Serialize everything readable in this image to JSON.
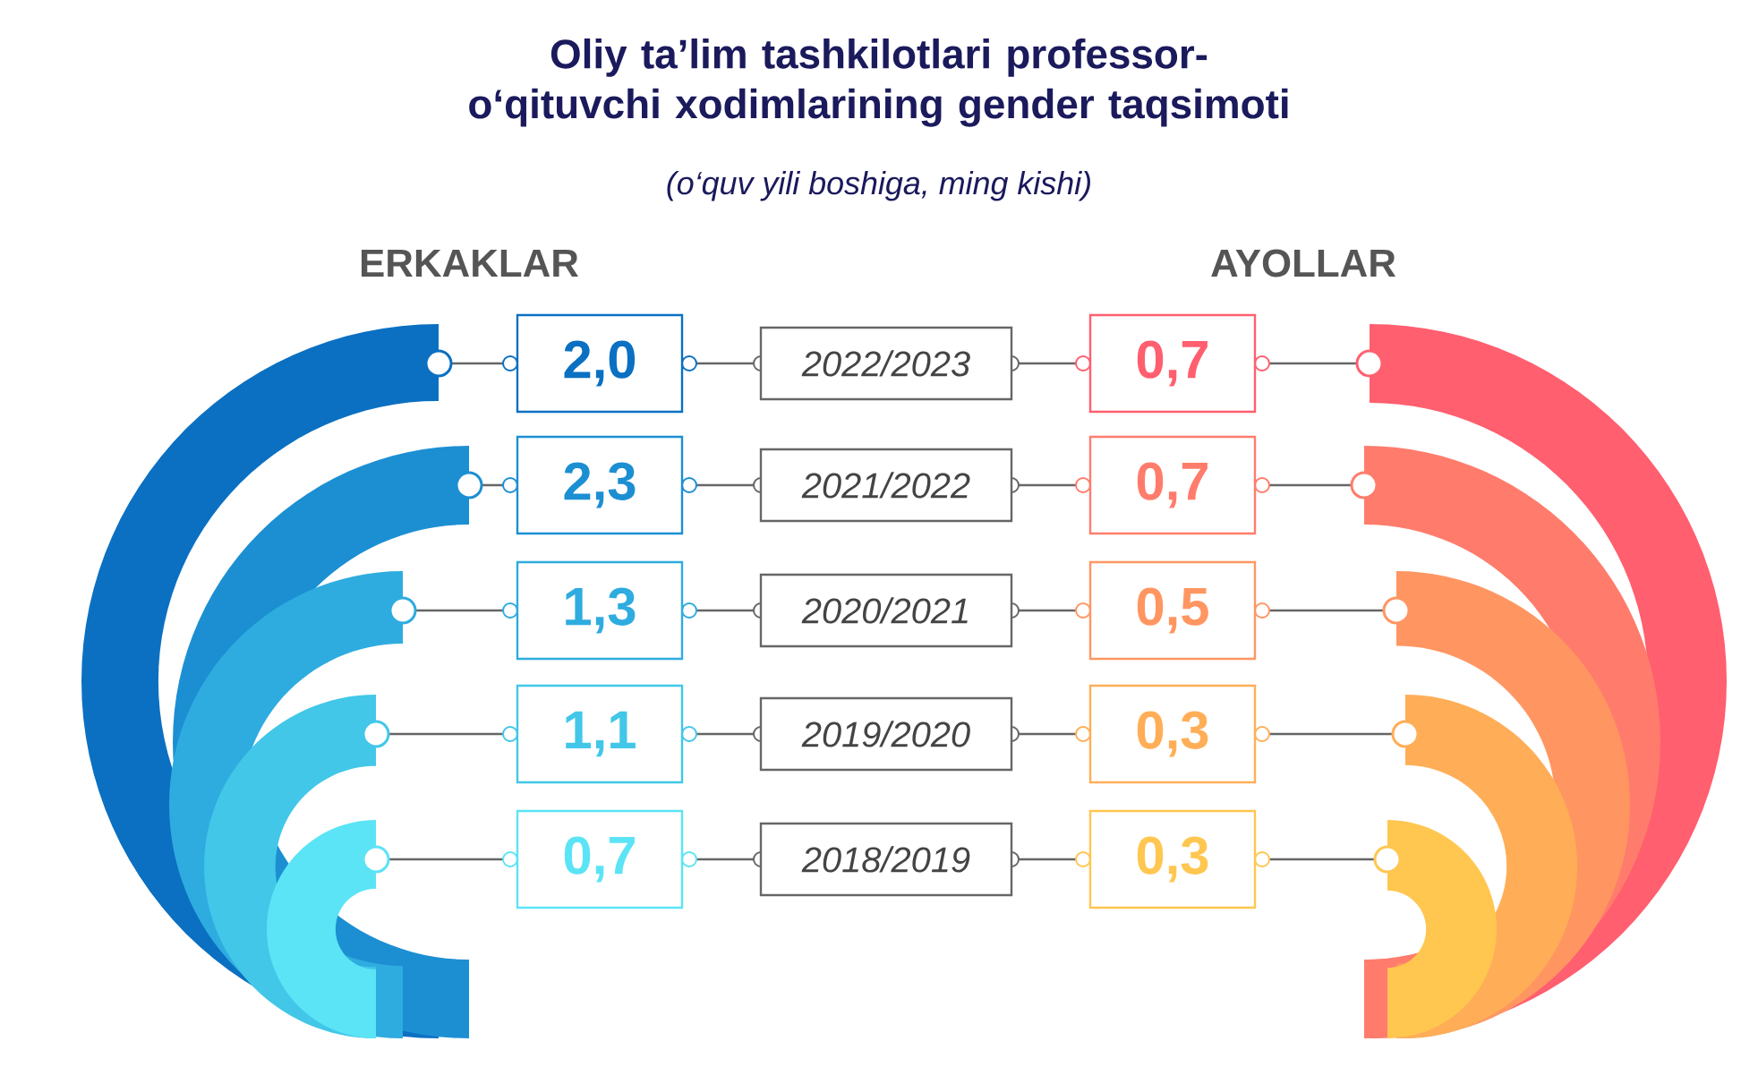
{
  "chart_data": {
    "type": "other",
    "title": "Oliy ta’lim tashkilotlari professor-o‘qituvchi xodimlarining gender taqsimoti",
    "subtitle": "(o‘quv yili boshiga, ming kishi)",
    "categories": [
      "2022/2023",
      "2021/2022",
      "2020/2021",
      "2019/2020",
      "2018/2019"
    ],
    "series": [
      {
        "name": "ERKAKLAR",
        "colors": [
          "#0b70c2",
          "#1c8fd3",
          "#2eacdf",
          "#42c7e8",
          "#5be4f6"
        ],
        "values": [
          2.0,
          2.3,
          1.3,
          1.1,
          0.7
        ],
        "value_labels": [
          "2,0",
          "2,3",
          "1,3",
          "1,1",
          "0,7"
        ]
      },
      {
        "name": "AYOLLAR",
        "colors": [
          "#ff5f6f",
          "#ff7c6c",
          "#ff9662",
          "#ffae57",
          "#ffc650"
        ],
        "values": [
          0.7,
          0.7,
          0.5,
          0.3,
          0.3
        ],
        "value_labels": [
          "0,7",
          "0,7",
          "0,5",
          "0,3",
          "0,3"
        ]
      }
    ]
  }
}
